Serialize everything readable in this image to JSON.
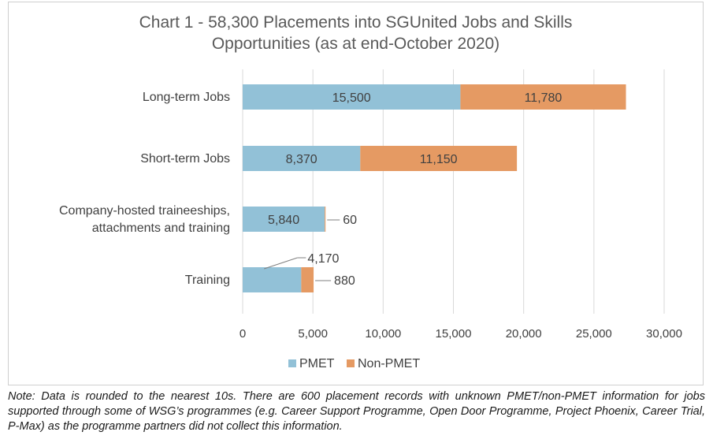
{
  "chart_data": {
    "type": "bar",
    "orientation": "horizontal",
    "stacked": true,
    "title": "Chart 1 - 58,300 Placements into SGUnited Jobs and Skills\nOpportunities (as at end-October 2020)",
    "categories": [
      "Long-term Jobs",
      "Short-term Jobs",
      "Company-hosted traineeships,\nattachments and training",
      "Training"
    ],
    "series": [
      {
        "name": "PMET",
        "values": [
          15500,
          8370,
          5840,
          4170
        ],
        "labels": [
          "15,500",
          "8,370",
          "5,840",
          "4,170"
        ],
        "color": "#92c1d7"
      },
      {
        "name": "Non-PMET",
        "values": [
          11780,
          11150,
          60,
          880
        ],
        "labels": [
          "11,780",
          "11,150",
          "60",
          "880"
        ],
        "color": "#e59a63"
      }
    ],
    "xlim": [
      0,
      30000
    ],
    "x_ticks": [
      0,
      5000,
      10000,
      15000,
      20000,
      25000,
      30000
    ],
    "x_tick_labels": [
      "0",
      "5,000",
      "10,000",
      "15,000",
      "20,000",
      "25,000",
      "30,000"
    ],
    "grid": true,
    "legend_position": "bottom"
  },
  "note": "Note: Data is rounded to the nearest 10s. There are 600 placement records with unknown PMET/non-PMET information for jobs supported through some of WSG’s programmes (e.g. Career Support Programme, Open Door Programme, Project Phoenix, Career Trial, P-Max) as the programme partners did not collect this information.",
  "colors": {
    "grid": "#d9d9d9",
    "text": "#404040",
    "title": "#595959"
  }
}
